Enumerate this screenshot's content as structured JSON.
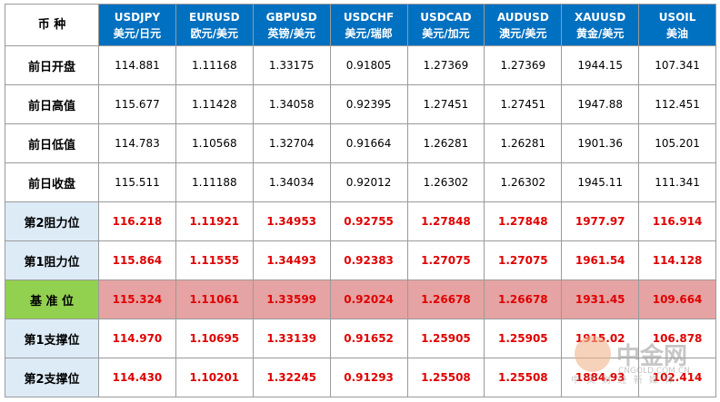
{
  "header": {
    "corner": "币 种",
    "columns": [
      {
        "code": "USDJPY",
        "name": "美元/日元"
      },
      {
        "code": "EURUSD",
        "name": "欧元/美元"
      },
      {
        "code": "GBPUSD",
        "name": "英镑/美元"
      },
      {
        "code": "USDCHF",
        "name": "美元/瑞郎"
      },
      {
        "code": "USDCAD",
        "name": "美元/加元"
      },
      {
        "code": "AUDUSD",
        "name": "澳元/美元"
      },
      {
        "code": "XAUUSD",
        "name": "黄金/美元"
      },
      {
        "code": "USOIL",
        "name": "美油"
      }
    ]
  },
  "rows": [
    {
      "label": "前日开盘",
      "values": [
        "114.881",
        "1.11168",
        "1.33175",
        "0.91805",
        "1.27369",
        "1.27369",
        "1944.15",
        "107.341"
      ]
    },
    {
      "label": "前日高值",
      "values": [
        "115.677",
        "1.11428",
        "1.34058",
        "0.92395",
        "1.27451",
        "1.27451",
        "1947.88",
        "112.451"
      ]
    },
    {
      "label": "前日低值",
      "values": [
        "114.783",
        "1.10568",
        "1.32704",
        "0.91664",
        "1.26281",
        "1.26281",
        "1901.36",
        "105.201"
      ]
    },
    {
      "label": "前日收盘",
      "values": [
        "115.511",
        "1.11188",
        "1.34034",
        "0.92012",
        "1.26302",
        "1.26302",
        "1945.11",
        "111.341"
      ]
    },
    {
      "label": "第2阻力位",
      "values": [
        "116.218",
        "1.11921",
        "1.34953",
        "0.92755",
        "1.27848",
        "1.27848",
        "1977.97",
        "116.914"
      ]
    },
    {
      "label": "第1阻力位",
      "values": [
        "115.864",
        "1.11555",
        "1.34493",
        "0.92383",
        "1.27075",
        "1.27075",
        "1961.54",
        "114.128"
      ]
    },
    {
      "label": "基 准 位",
      "values": [
        "115.324",
        "1.11061",
        "1.33599",
        "0.92024",
        "1.26678",
        "1.26678",
        "1931.45",
        "109.664"
      ]
    },
    {
      "label": "第1支撑位",
      "values": [
        "114.970",
        "1.10695",
        "1.33139",
        "0.91652",
        "1.25905",
        "1.25905",
        "1915.02",
        "106.878"
      ]
    },
    {
      "label": "第2支撑位",
      "values": [
        "114.430",
        "1.10201",
        "1.32245",
        "0.91293",
        "1.25508",
        "1.25508",
        "1884.93",
        "102.414"
      ]
    }
  ],
  "watermark": {
    "brand": "中金网",
    "site": "CNGOLD.COM.CN",
    "slogan": "中 文 财 经 新 媒 体"
  }
}
